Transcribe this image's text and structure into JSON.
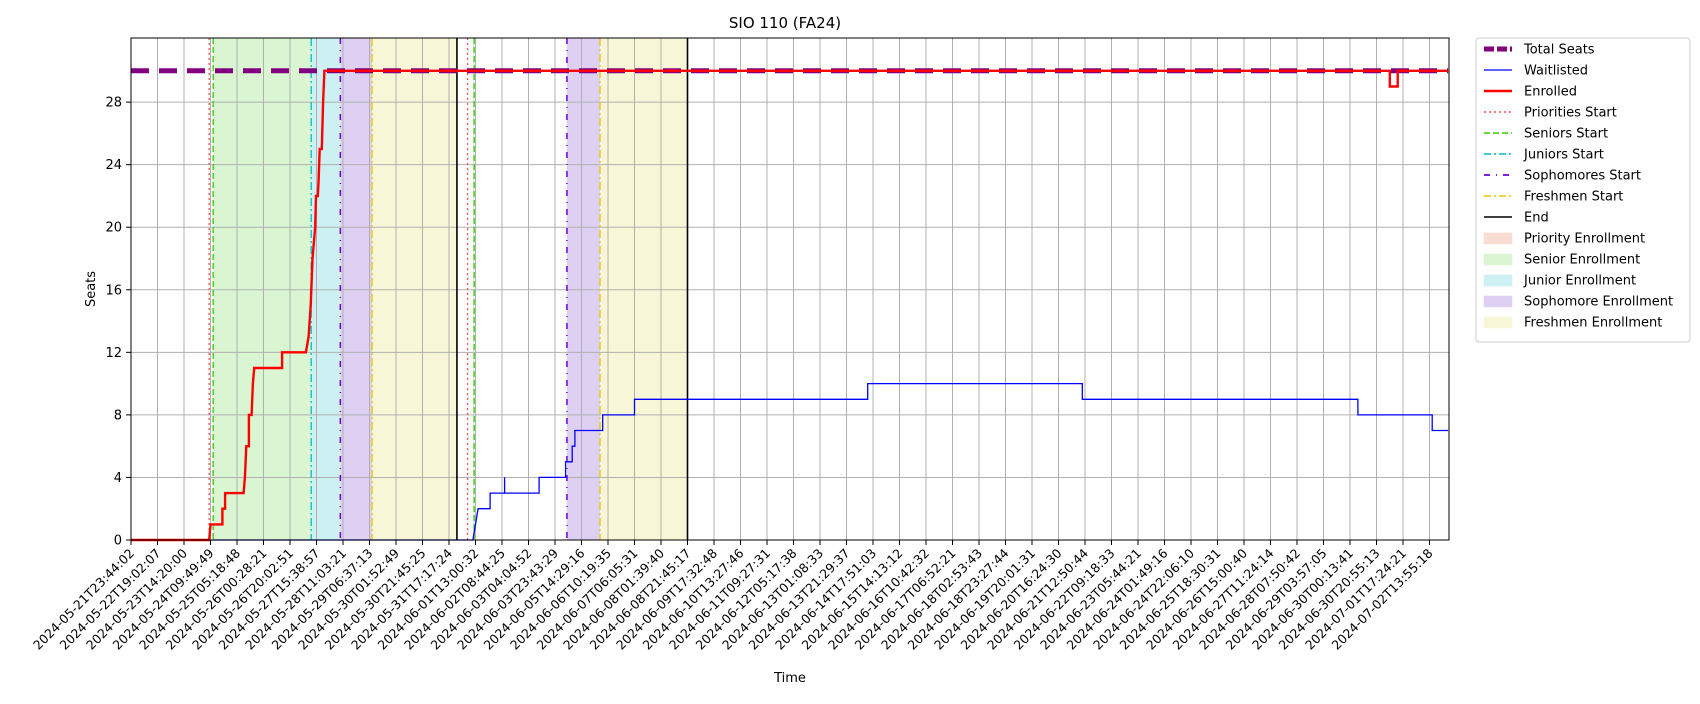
{
  "chart_data": {
    "type": "line",
    "title": "SIO 110 (FA24)",
    "xlabel": "Time",
    "ylabel": "Seats",
    "ylim": [
      0,
      30
    ],
    "y_ticks": [
      0,
      4,
      8,
      12,
      16,
      20,
      24,
      28
    ],
    "grid": true,
    "legend_position": "outside-right",
    "x_tick_labels": [
      "2024-05-21T23:44:02",
      "2024-05-22T19:02:07",
      "2024-05-23T14:20:00",
      "2024-05-24T09:49:49",
      "2024-05-25T05:18:48",
      "2024-05-26T00:28:21",
      "2024-05-26T20:02:51",
      "2024-05-27T15:38:57",
      "2024-05-28T11:03:21",
      "2024-05-29T06:37:13",
      "2024-05-30T01:52:49",
      "2024-05-30T21:45:25",
      "2024-05-31T17:17:24",
      "2024-06-01T13:00:32",
      "2024-06-02T08:44:25",
      "2024-06-03T04:04:52",
      "2024-06-03T23:43:29",
      "2024-06-05T14:29:16",
      "2024-06-06T10:19:35",
      "2024-06-07T06:05:31",
      "2024-06-08T01:39:40",
      "2024-06-08T21:45:17",
      "2024-06-09T17:32:48",
      "2024-06-10T13:27:46",
      "2024-06-11T09:27:31",
      "2024-06-12T05:17:38",
      "2024-06-13T01:08:33",
      "2024-06-13T21:29:37",
      "2024-06-14T17:51:03",
      "2024-06-15T14:13:12",
      "2024-06-16T10:42:32",
      "2024-06-17T06:52:21",
      "2024-06-18T02:53:43",
      "2024-06-18T23:27:44",
      "2024-06-19T20:01:31",
      "2024-06-20T16:24:30",
      "2024-06-21T12:50:44",
      "2024-06-22T09:18:33",
      "2024-06-23T05:44:21",
      "2024-06-24T01:49:16",
      "2024-06-24T22:06:10",
      "2024-06-25T18:30:31",
      "2024-06-26T15:00:40",
      "2024-06-27T11:24:14",
      "2024-06-28T07:50:42",
      "2024-06-29T03:57:05",
      "2024-06-30T00:13:41",
      "2024-06-30T20:55:13",
      "2024-07-01T17:24:21",
      "2024-07-02T13:55:18"
    ],
    "x_range": [
      0,
      49.7
    ],
    "regions": [
      {
        "name": "Senior Enrollment",
        "start": 3.1,
        "end": 6.8,
        "color": "#d9f5d2"
      },
      {
        "name": "Junior Enrollment",
        "start": 6.8,
        "end": 7.9,
        "color": "#cdf0f3"
      },
      {
        "name": "Sophomore Enrollment",
        "start": 7.9,
        "end": 9.1,
        "color": "#ddd0f3"
      },
      {
        "name": "Freshmen Enrollment",
        "start": 9.1,
        "end": 12.3,
        "color": "#f7f7d7"
      },
      {
        "name": "Senior Enrollment",
        "start": 12.9,
        "end": 12.95,
        "color": "#d9f5d2"
      },
      {
        "name": "Sophomore Enrollment",
        "start": 16.45,
        "end": 17.7,
        "color": "#ddd0f3"
      },
      {
        "name": "Freshmen Enrollment",
        "start": 17.7,
        "end": 21.0,
        "color": "#f7f7d7"
      }
    ],
    "vlines": [
      {
        "type": "Priorities Start",
        "x": 2.95
      },
      {
        "type": "Seniors Start",
        "x": 3.1
      },
      {
        "type": "Juniors Start",
        "x": 6.8
      },
      {
        "type": "Sophomores Start",
        "x": 7.9
      },
      {
        "type": "Freshmen Start",
        "x": 9.1
      },
      {
        "type": "End",
        "x": 12.3
      },
      {
        "type": "Priorities Start",
        "x": 12.7
      },
      {
        "type": "Seniors Start",
        "x": 12.95
      },
      {
        "type": "Sophomores Start",
        "x": 16.45
      },
      {
        "type": "Freshmen Start",
        "x": 17.7
      },
      {
        "type": "End",
        "x": 21.0
      }
    ],
    "series": [
      {
        "name": "Total Seats",
        "color": "#800080",
        "points": [
          [
            0,
            30
          ],
          [
            49.7,
            30
          ]
        ]
      },
      {
        "name": "Waitlisted",
        "color": "#0000ff",
        "points": [
          [
            0,
            0
          ],
          [
            12.9,
            0
          ],
          [
            13.1,
            2
          ],
          [
            13.55,
            2
          ],
          [
            13.55,
            3
          ],
          [
            14.1,
            3
          ],
          [
            14.1,
            4
          ],
          [
            14.1,
            3
          ],
          [
            15.4,
            3
          ],
          [
            15.4,
            4
          ],
          [
            16.4,
            4
          ],
          [
            16.4,
            5
          ],
          [
            16.65,
            5
          ],
          [
            16.65,
            6
          ],
          [
            16.75,
            6
          ],
          [
            16.75,
            7
          ],
          [
            17.8,
            7
          ],
          [
            17.8,
            8
          ],
          [
            19.0,
            8
          ],
          [
            19.0,
            9
          ],
          [
            27.8,
            9
          ],
          [
            27.8,
            10
          ],
          [
            35.9,
            10
          ],
          [
            35.9,
            9
          ],
          [
            46.3,
            9
          ],
          [
            46.3,
            8
          ],
          [
            49.1,
            8
          ],
          [
            49.1,
            7
          ],
          [
            49.7,
            7
          ]
        ]
      },
      {
        "name": "Enrolled",
        "color": "#ff0000",
        "points": [
          [
            0,
            0
          ],
          [
            2.95,
            0
          ],
          [
            3.0,
            1
          ],
          [
            3.45,
            1
          ],
          [
            3.45,
            2
          ],
          [
            3.55,
            2
          ],
          [
            3.55,
            3
          ],
          [
            4.25,
            3
          ],
          [
            4.3,
            4
          ],
          [
            4.35,
            6
          ],
          [
            4.45,
            6
          ],
          [
            4.45,
            8
          ],
          [
            4.55,
            8
          ],
          [
            4.6,
            10
          ],
          [
            4.65,
            11
          ],
          [
            5.7,
            11
          ],
          [
            5.7,
            12
          ],
          [
            6.6,
            12
          ],
          [
            6.7,
            13
          ],
          [
            6.78,
            15
          ],
          [
            6.85,
            18
          ],
          [
            6.95,
            20
          ],
          [
            6.98,
            22
          ],
          [
            7.05,
            22
          ],
          [
            7.08,
            23
          ],
          [
            7.12,
            25
          ],
          [
            7.2,
            25
          ],
          [
            7.25,
            28
          ],
          [
            7.3,
            30
          ],
          [
            47.5,
            30
          ],
          [
            47.5,
            29
          ],
          [
            47.8,
            29
          ],
          [
            47.8,
            30
          ],
          [
            49.7,
            30
          ]
        ]
      }
    ],
    "legend": [
      {
        "label": "Total Seats",
        "kind": "line",
        "color": "#800080",
        "style": "thickdash"
      },
      {
        "label": "Waitlisted",
        "kind": "line",
        "color": "#0000ff",
        "style": "solid"
      },
      {
        "label": "Enrolled",
        "kind": "line",
        "color": "#ff0000",
        "style": "thick"
      },
      {
        "label": "Priorities Start",
        "kind": "line",
        "color": "#ff4d4d",
        "style": "dotted"
      },
      {
        "label": "Seniors Start",
        "kind": "line",
        "color": "#33cc00",
        "style": "dashed"
      },
      {
        "label": "Juniors Start",
        "kind": "line",
        "color": "#00bfbf",
        "style": "dashdot"
      },
      {
        "label": "Sophomores Start",
        "kind": "line",
        "color": "#6a00d4",
        "style": "loosedash"
      },
      {
        "label": "Freshmen Start",
        "kind": "line",
        "color": "#e6c800",
        "style": "dashdot"
      },
      {
        "label": "End",
        "kind": "line",
        "color": "#000000",
        "style": "solid"
      },
      {
        "label": "Priority Enrollment",
        "kind": "patch",
        "color": "#f9ddd2"
      },
      {
        "label": "Senior Enrollment",
        "kind": "patch",
        "color": "#d9f5d2"
      },
      {
        "label": "Junior Enrollment",
        "kind": "patch",
        "color": "#cdf0f3"
      },
      {
        "label": "Sophomore Enrollment",
        "kind": "patch",
        "color": "#ddd0f3"
      },
      {
        "label": "Freshmen Enrollment",
        "kind": "patch",
        "color": "#f7f7d7"
      }
    ]
  }
}
